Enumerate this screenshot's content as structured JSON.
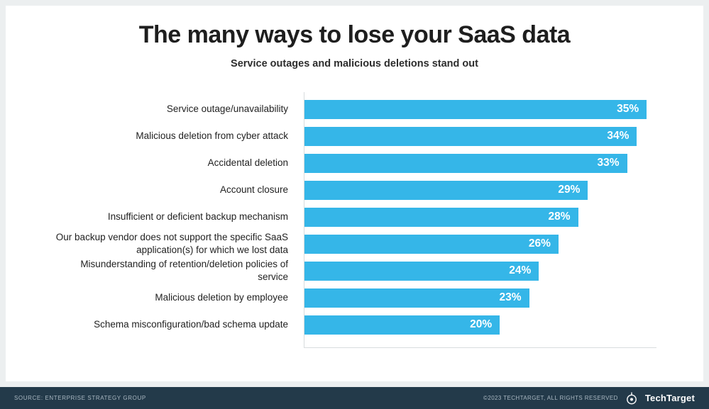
{
  "chart_data": {
    "type": "bar",
    "orientation": "horizontal",
    "title": "The many ways to lose your SaaS data",
    "subtitle": "Service outages and malicious deletions stand out",
    "categories": [
      "Service outage/unavailability",
      "Malicious deletion from cyber attack",
      "Accidental deletion",
      "Account closure",
      "Insufficient or deficient backup mechanism",
      "Our backup vendor does not support the specific SaaS application(s) for which we lost data",
      "Misunderstanding of retention/deletion policies of service",
      "Malicious deletion by employee",
      "Schema misconfiguration/bad schema update"
    ],
    "values": [
      35,
      34,
      33,
      29,
      28,
      26,
      24,
      23,
      20
    ],
    "value_suffix": "%",
    "xlabel": "",
    "ylabel": "",
    "xlim": [
      0,
      36
    ],
    "grid": false,
    "legend": false,
    "bar_color": "#35b6e8"
  },
  "footer": {
    "source": "SOURCE: ENTERPRISE STRATEGY GROUP",
    "copyright": "©2023 TECHTARGET, ALL RIGHTS RESERVED",
    "brand": "TechTarget",
    "bg_color": "#233a4a"
  }
}
